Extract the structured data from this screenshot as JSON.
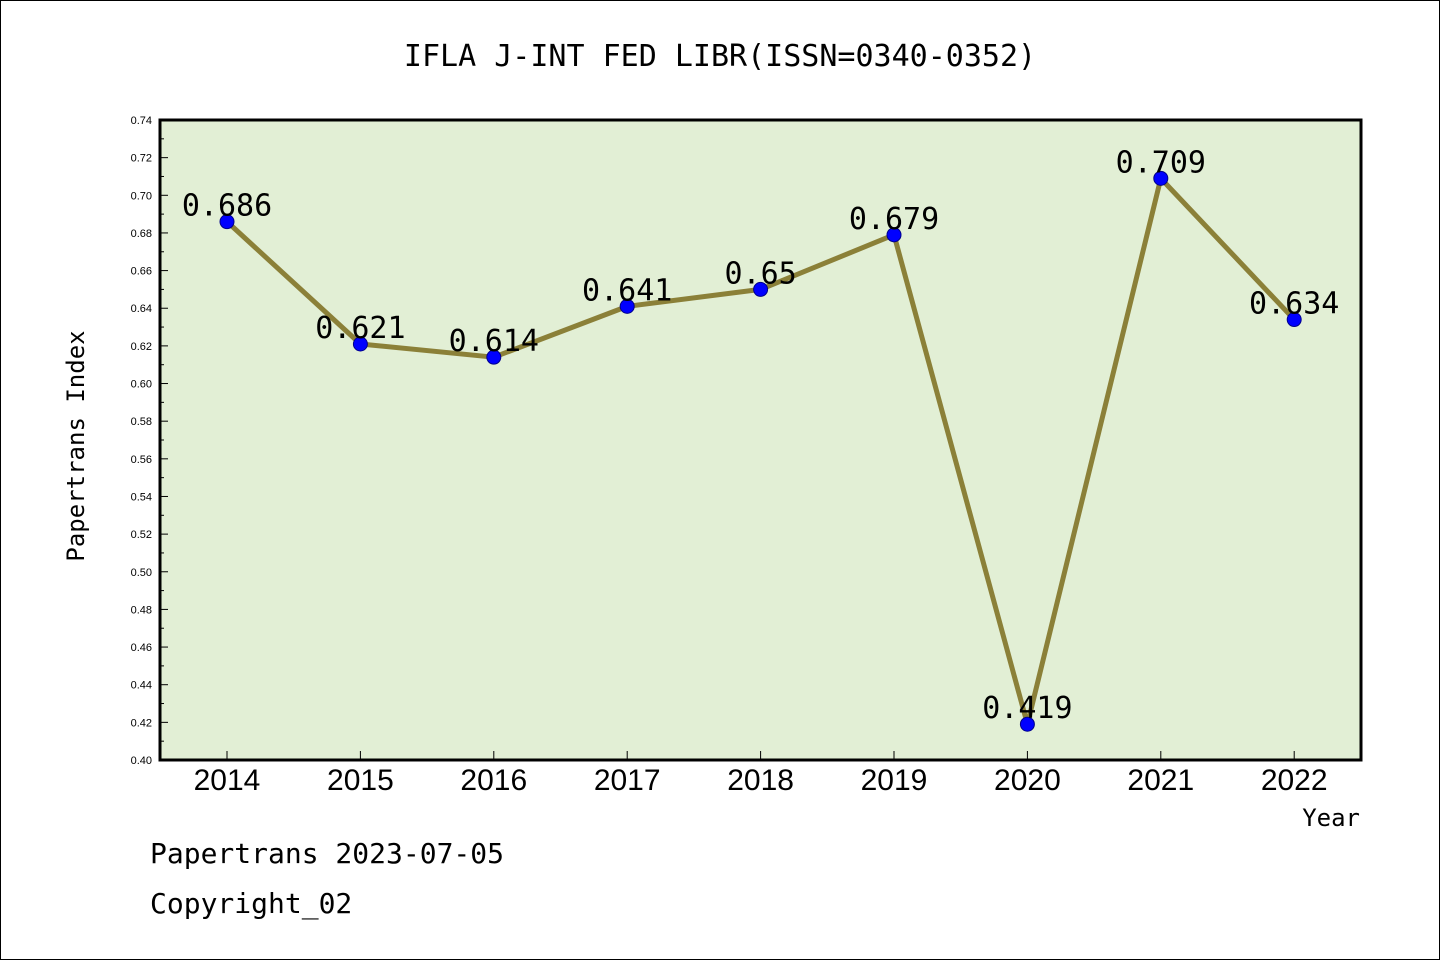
{
  "chart_data": {
    "type": "line",
    "title": "IFLA J-INT FED LIBR(ISSN=0340-0352)",
    "xlabel": "Year",
    "ylabel": "Papertrans Index",
    "categories": [
      "2014",
      "2015",
      "2016",
      "2017",
      "2018",
      "2019",
      "2020",
      "2021",
      "2022"
    ],
    "values": [
      0.686,
      0.621,
      0.614,
      0.641,
      0.65,
      0.679,
      0.419,
      0.709,
      0.634
    ],
    "data_labels": [
      "0.686",
      "0.621",
      "0.614",
      "0.641",
      "0.65",
      "0.679",
      "0.419",
      "0.709",
      "0.634"
    ],
    "ylim": [
      0.4,
      0.74
    ],
    "yticks": [
      "0.40",
      "0.42",
      "0.44",
      "0.46",
      "0.48",
      "0.50",
      "0.52",
      "0.54",
      "0.56",
      "0.58",
      "0.60",
      "0.62",
      "0.64",
      "0.66",
      "0.68",
      "0.70",
      "0.72",
      "0.74"
    ],
    "grid": false,
    "colors": {
      "plot_background": "#e2efd5",
      "line": "#8b8038",
      "marker": "#0000ff",
      "marker_edge": "#00008b"
    }
  },
  "footer": {
    "line1": "Papertrans 2023-07-05",
    "line2": "Copyright_02"
  }
}
